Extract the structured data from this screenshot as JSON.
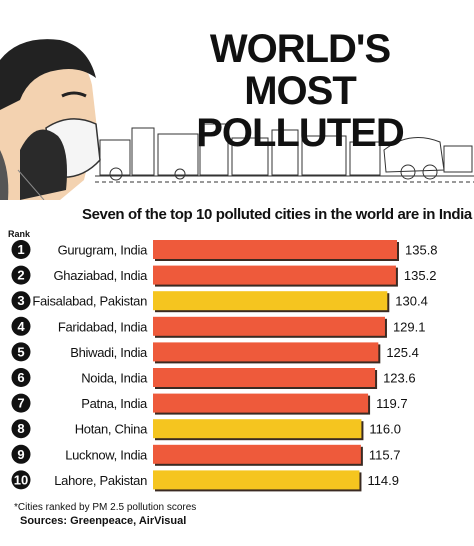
{
  "chart_data": {
    "type": "bar",
    "orientation": "horizontal",
    "title": "WORLD'S MOST POLLUTED",
    "subtitle": "Seven of the top 10 polluted cities in the world are in India",
    "rank_label": "Rank",
    "ranks": [
      "1",
      "2",
      "3",
      "4",
      "5",
      "6",
      "7",
      "8",
      "9",
      "10"
    ],
    "categories": [
      "Gurugram, India",
      "Ghaziabad, India",
      "Faisalabad, Pakistan",
      "Faridabad, India",
      "Bhiwadi, India",
      "Noida, India",
      "Patna, India",
      "Hotan, China",
      "Lucknow, India",
      "Lahore, Pakistan"
    ],
    "values": [
      135.8,
      135.2,
      130.4,
      129.1,
      125.4,
      123.6,
      119.7,
      116.0,
      115.7,
      114.9
    ],
    "value_labels": [
      "135.8",
      "135.2",
      "130.4",
      "129.1",
      "125.4",
      "123.6",
      "119.7",
      "116.0",
      "115.7",
      "114.9"
    ],
    "country_group": [
      "india",
      "india",
      "other",
      "india",
      "india",
      "india",
      "india",
      "other",
      "india",
      "other"
    ],
    "colors": {
      "india": "#ee5a3b",
      "other": "#f5c51f",
      "bar_outline": "#3a2a22",
      "rank_circle": "#111111"
    },
    "footnote": "*Cities ranked by PM 2.5 pollution scores",
    "sources": "Sources: Greenpeace, AirVisual"
  }
}
